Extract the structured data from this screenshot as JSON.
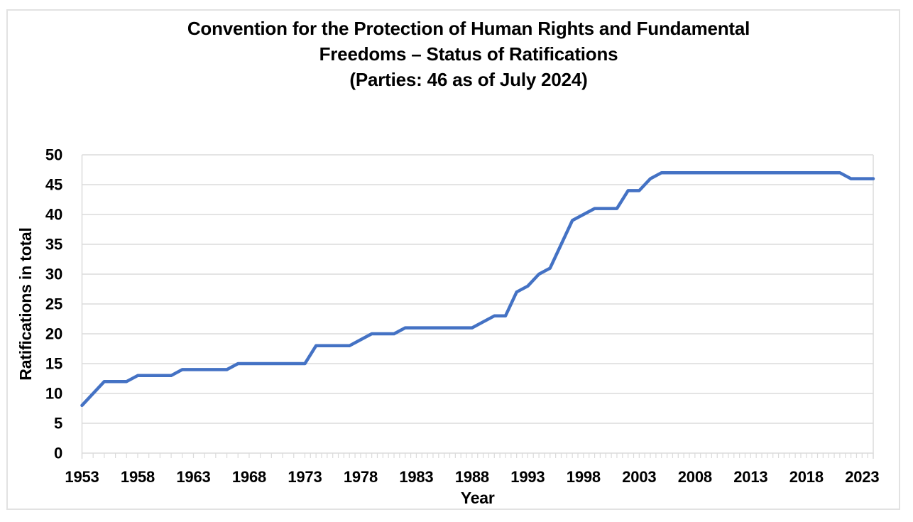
{
  "chart_data": {
    "type": "line",
    "title": "Convention for the Protection of Human Rights and Fundamental Freedoms – Status of Ratifications (Parties: 46 as of July 2024)",
    "title_lines": [
      "Convention for the Protection of Human Rights and Fundamental",
      "Freedoms – Status of Ratifications",
      "(Parties: 46 as of July 2024)"
    ],
    "xlabel": "Year",
    "ylabel": "Ratifications in total",
    "x": [
      1953,
      1954,
      1955,
      1956,
      1957,
      1958,
      1959,
      1960,
      1961,
      1962,
      1963,
      1964,
      1965,
      1966,
      1967,
      1968,
      1969,
      1970,
      1971,
      1972,
      1973,
      1974,
      1975,
      1976,
      1977,
      1978,
      1979,
      1980,
      1981,
      1982,
      1983,
      1984,
      1985,
      1986,
      1987,
      1988,
      1989,
      1990,
      1991,
      1992,
      1993,
      1994,
      1995,
      1996,
      1997,
      1998,
      1999,
      2000,
      2001,
      2002,
      2003,
      2004,
      2005,
      2006,
      2007,
      2008,
      2009,
      2010,
      2011,
      2012,
      2013,
      2014,
      2015,
      2016,
      2017,
      2018,
      2019,
      2020,
      2021,
      2022,
      2023,
      2024
    ],
    "values": [
      8,
      10,
      12,
      12,
      12,
      13,
      13,
      13,
      13,
      14,
      14,
      14,
      14,
      14,
      15,
      15,
      15,
      15,
      15,
      15,
      15,
      18,
      18,
      18,
      18,
      19,
      20,
      20,
      20,
      21,
      21,
      21,
      21,
      21,
      21,
      21,
      22,
      23,
      23,
      27,
      28,
      30,
      31,
      35,
      39,
      40,
      41,
      41,
      41,
      44,
      44,
      46,
      47,
      47,
      47,
      47,
      47,
      47,
      47,
      47,
      47,
      47,
      47,
      47,
      47,
      47,
      47,
      47,
      47,
      46,
      46,
      46
    ],
    "xticks": [
      1953,
      1958,
      1963,
      1968,
      1973,
      1978,
      1983,
      1988,
      1993,
      1998,
      2003,
      2008,
      2013,
      2018,
      2023
    ],
    "yticks": [
      0,
      5,
      10,
      15,
      20,
      25,
      30,
      35,
      40,
      45,
      50
    ],
    "xlim": [
      1953,
      2024
    ],
    "ylim": [
      0,
      50
    ],
    "grid": true,
    "legend": "none",
    "parties_current": 46,
    "as_of": "July 2024",
    "colors": {
      "line": "#4472C4",
      "gridline": "#DBDBDB",
      "frame_border": "#E2E2E2",
      "text": "#000000",
      "background": "#FFFFFF"
    }
  }
}
